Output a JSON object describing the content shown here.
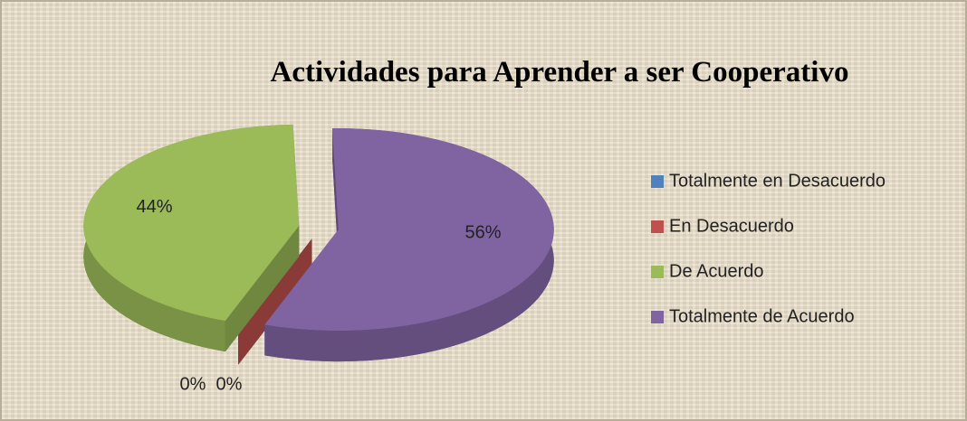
{
  "chart_data": {
    "type": "pie",
    "title": "Actividades para Aprender a ser Cooperativo",
    "categories": [
      "Totalmente en Desacuerdo",
      "En Desacuerdo",
      "De Acuerdo",
      "Totalmente de Acuerdo"
    ],
    "values": [
      0,
      0,
      44,
      56
    ],
    "value_labels": [
      "0%",
      "0%",
      "44%",
      "56%"
    ],
    "colors": [
      "#4f81bd",
      "#c0504d",
      "#9bbb59",
      "#8064a2"
    ],
    "legend": "right"
  }
}
